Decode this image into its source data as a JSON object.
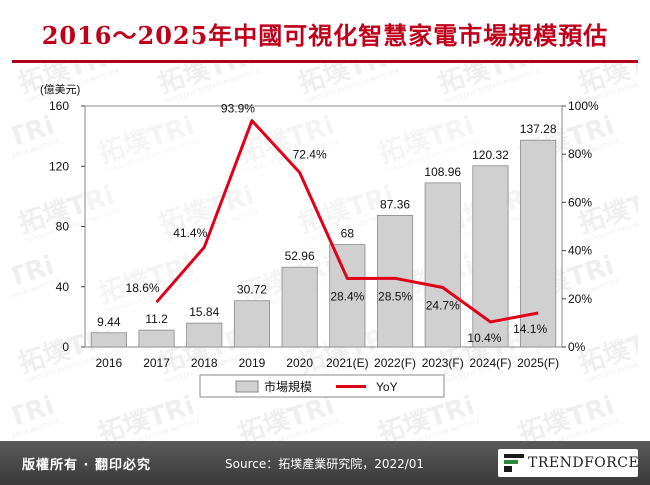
{
  "header": {
    "title": "2016～2025年中國可視化智慧家電市場規模預估"
  },
  "watermark": {
    "brand": "拓墣TRi",
    "subtext": "TOPOLOGY RESEARCH INSTITUTE"
  },
  "footer": {
    "rights": "版權所有 · 翻印必究",
    "source": "Source：拓墣產業研究院，2022/01",
    "brand": "TRENDFORCE"
  },
  "colors": {
    "title": "#c0001a",
    "bar": "#d0d0d0",
    "line": "#e00018",
    "footer": "#4a4a4a"
  },
  "chart_data": {
    "type": "bar",
    "left_axis_unit": "(億美元)",
    "categories": [
      "2016",
      "2017",
      "2018",
      "2019",
      "2020",
      "2021(E)",
      "2022(F)",
      "2023(F)",
      "2024(F)",
      "2025(F)"
    ],
    "series": [
      {
        "name": "市場規模",
        "type": "bar",
        "axis": "left",
        "values": [
          9.44,
          11.2,
          15.84,
          30.72,
          52.96,
          68,
          87.36,
          108.96,
          120.32,
          137.28
        ],
        "labels": [
          "9.44",
          "11.2",
          "15.84",
          "30.72",
          "52.96",
          "68",
          "87.36",
          "108.96",
          "120.32",
          "137.28"
        ]
      },
      {
        "name": "YoY",
        "type": "line",
        "axis": "right",
        "values": [
          null,
          18.6,
          41.4,
          93.9,
          72.4,
          28.4,
          28.5,
          24.7,
          10.4,
          14.1
        ],
        "labels": [
          "",
          "18.6%",
          "41.4%",
          "93.9%",
          "72.4%",
          "28.4%",
          "28.5%",
          "24.7%",
          "10.4%",
          "14.1%"
        ]
      }
    ],
    "left_ticks": [
      "0",
      "40",
      "80",
      "120",
      "160"
    ],
    "right_ticks": [
      "0%",
      "20%",
      "40%",
      "60%",
      "80%",
      "100%"
    ],
    "ylim_left": [
      0,
      160
    ],
    "ylim_right": [
      0,
      100
    ],
    "grid": false,
    "legend_position": "bottom"
  }
}
